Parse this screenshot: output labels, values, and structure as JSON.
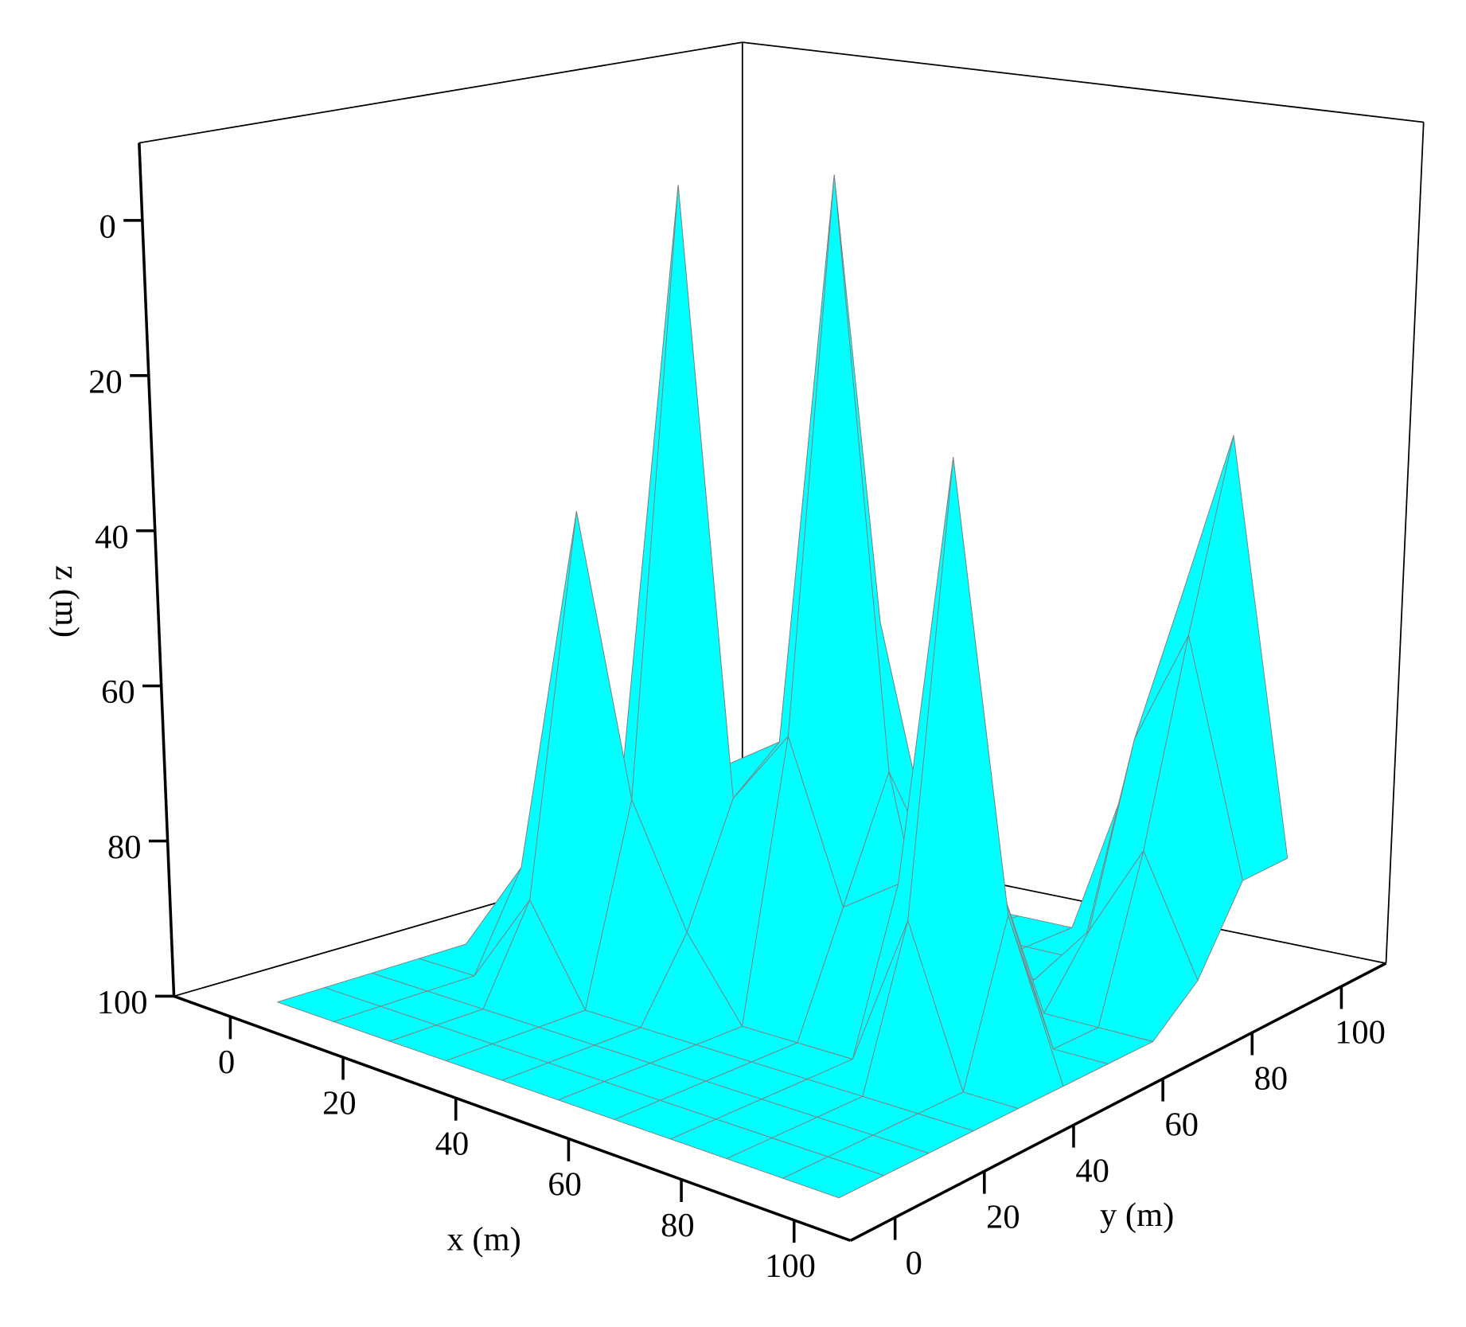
{
  "chart_data": {
    "type": "surface",
    "x": [
      0,
      10,
      20,
      30,
      40,
      50,
      60,
      70,
      80,
      90,
      100
    ],
    "y": [
      0,
      10,
      20,
      30,
      40,
      50,
      60,
      70,
      80,
      90,
      100
    ],
    "z": [
      [
        100,
        100,
        100,
        100,
        100,
        100,
        100,
        100,
        100,
        100,
        100
      ],
      [
        100,
        100,
        100,
        100,
        100,
        100,
        100,
        100,
        100,
        100,
        100
      ],
      [
        100,
        100,
        100,
        100,
        100,
        100,
        100,
        100,
        100,
        100,
        100
      ],
      [
        100,
        100,
        88,
        100,
        100,
        100,
        100,
        100,
        100,
        100,
        100
      ],
      [
        100,
        88,
        40,
        75,
        90,
        100,
        100,
        100,
        80,
        100,
        100
      ],
      [
        100,
        100,
        75,
        -2,
        75,
        65,
        85,
        80,
        23,
        80,
        100
      ],
      [
        100,
        100,
        90,
        75,
        70,
        -5,
        70,
        100,
        80,
        100,
        100
      ],
      [
        100,
        100,
        100,
        100,
        85,
        55,
        85,
        100,
        100,
        100,
        100
      ],
      [
        100,
        100,
        100,
        100,
        100,
        100,
        100,
        100,
        92,
        80,
        95
      ],
      [
        100,
        100,
        100,
        100,
        100,
        100,
        100,
        100,
        70,
        55,
        85
      ],
      [
        100,
        100,
        100,
        100,
        100,
        100,
        100,
        80,
        55,
        32,
        85
      ]
    ],
    "xlim": [
      -10,
      110
    ],
    "ylim": [
      -10,
      110
    ],
    "zlim": [
      -10,
      100
    ],
    "z_inverted": true,
    "xticks": [
      0,
      20,
      40,
      60,
      80,
      100
    ],
    "yticks": [
      0,
      20,
      40,
      60,
      80,
      100
    ],
    "zticks": [
      0,
      20,
      40,
      60,
      80,
      100
    ],
    "xlabel": "x (m)",
    "ylabel": "y (m)",
    "zlabel": "z (m)",
    "color": "#00ffff",
    "edge_color": "#808080"
  }
}
